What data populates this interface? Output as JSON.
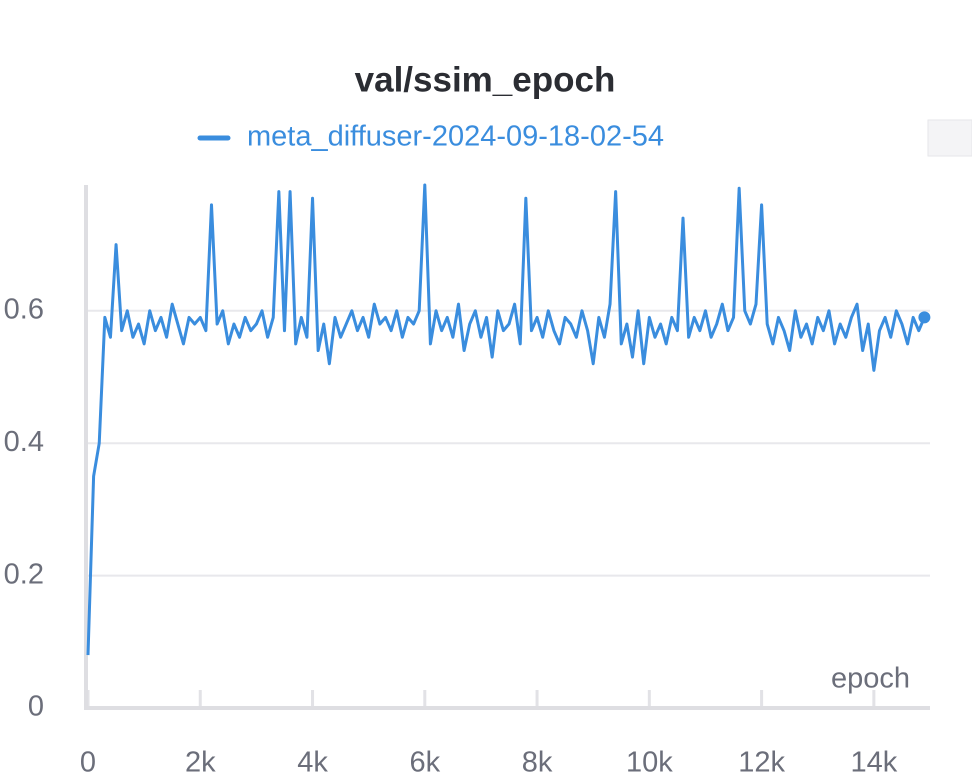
{
  "chart_data": {
    "type": "line",
    "title": "val/ssim_epoch",
    "xlabel": "epoch",
    "x": [
      0,
      100,
      200,
      300,
      400,
      500,
      600,
      700,
      800,
      900,
      1000,
      1100,
      1200,
      1300,
      1400,
      1500,
      1600,
      1700,
      1800,
      1900,
      2000,
      2100,
      2200,
      2300,
      2400,
      2500,
      2600,
      2700,
      2800,
      2900,
      3000,
      3100,
      3200,
      3300,
      3400,
      3500,
      3600,
      3700,
      3800,
      3900,
      4000,
      4100,
      4200,
      4300,
      4400,
      4500,
      4600,
      4700,
      4800,
      4900,
      5000,
      5100,
      5200,
      5300,
      5400,
      5500,
      5600,
      5700,
      5800,
      5900,
      6000,
      6100,
      6200,
      6300,
      6400,
      6500,
      6600,
      6700,
      6800,
      6900,
      7000,
      7100,
      7200,
      7300,
      7400,
      7500,
      7600,
      7700,
      7800,
      7900,
      8000,
      8100,
      8200,
      8300,
      8400,
      8500,
      8600,
      8700,
      8800,
      8900,
      9000,
      9100,
      9200,
      9300,
      9400,
      9500,
      9600,
      9700,
      9800,
      9900,
      10000,
      10100,
      10200,
      10300,
      10400,
      10500,
      10600,
      10700,
      10800,
      10900,
      11000,
      11100,
      11200,
      11300,
      11400,
      11500,
      11600,
      11700,
      11800,
      11900,
      12000,
      12100,
      12200,
      12300,
      12400,
      12500,
      12600,
      12700,
      12800,
      12900,
      13000,
      13100,
      13200,
      13300,
      13400,
      13500,
      13600,
      13700,
      13800,
      13900,
      14000,
      14100,
      14200,
      14300,
      14400,
      14500,
      14600,
      14700,
      14800,
      14900
    ],
    "series": [
      {
        "name": "meta_diffuser-2024-09-18-02-54",
        "color": "#3a8dde",
        "values": [
          0.08,
          0.35,
          0.4,
          0.59,
          0.56,
          0.7,
          0.57,
          0.6,
          0.56,
          0.58,
          0.55,
          0.6,
          0.57,
          0.59,
          0.56,
          0.61,
          0.58,
          0.55,
          0.59,
          0.58,
          0.59,
          0.57,
          0.76,
          0.58,
          0.6,
          0.55,
          0.58,
          0.56,
          0.59,
          0.57,
          0.58,
          0.6,
          0.56,
          0.59,
          0.78,
          0.57,
          0.78,
          0.55,
          0.59,
          0.56,
          0.77,
          0.54,
          0.58,
          0.52,
          0.59,
          0.56,
          0.58,
          0.6,
          0.57,
          0.59,
          0.56,
          0.61,
          0.58,
          0.59,
          0.57,
          0.6,
          0.56,
          0.59,
          0.58,
          0.6,
          0.79,
          0.55,
          0.6,
          0.57,
          0.59,
          0.56,
          0.61,
          0.54,
          0.58,
          0.6,
          0.56,
          0.59,
          0.53,
          0.6,
          0.57,
          0.58,
          0.61,
          0.55,
          0.77,
          0.57,
          0.59,
          0.56,
          0.6,
          0.57,
          0.55,
          0.59,
          0.58,
          0.56,
          0.6,
          0.57,
          0.52,
          0.59,
          0.56,
          0.61,
          0.78,
          0.55,
          0.58,
          0.53,
          0.6,
          0.52,
          0.59,
          0.56,
          0.58,
          0.55,
          0.59,
          0.57,
          0.74,
          0.56,
          0.59,
          0.57,
          0.6,
          0.56,
          0.58,
          0.61,
          0.57,
          0.59,
          0.785,
          0.6,
          0.58,
          0.61,
          0.76,
          0.58,
          0.55,
          0.59,
          0.57,
          0.54,
          0.6,
          0.56,
          0.58,
          0.55,
          0.59,
          0.57,
          0.6,
          0.55,
          0.58,
          0.56,
          0.59,
          0.61,
          0.54,
          0.58,
          0.51,
          0.57,
          0.59,
          0.56,
          0.6,
          0.58,
          0.55,
          0.59,
          0.57,
          0.59
        ]
      }
    ],
    "xlim": [
      0,
      15000
    ],
    "ylim": [
      0,
      0.79
    ],
    "xticks": [
      0,
      {
        "value": 2000,
        "label": "2k"
      },
      {
        "value": 4000,
        "label": "4k"
      },
      {
        "value": 6000,
        "label": "6k"
      },
      {
        "value": 8000,
        "label": "8k"
      },
      {
        "value": 10000,
        "label": "10k"
      },
      {
        "value": 12000,
        "label": "12k"
      },
      {
        "value": 14000,
        "label": "14k"
      }
    ],
    "yticks": [
      0,
      0.2,
      0.4,
      0.6
    ],
    "grid": true
  }
}
